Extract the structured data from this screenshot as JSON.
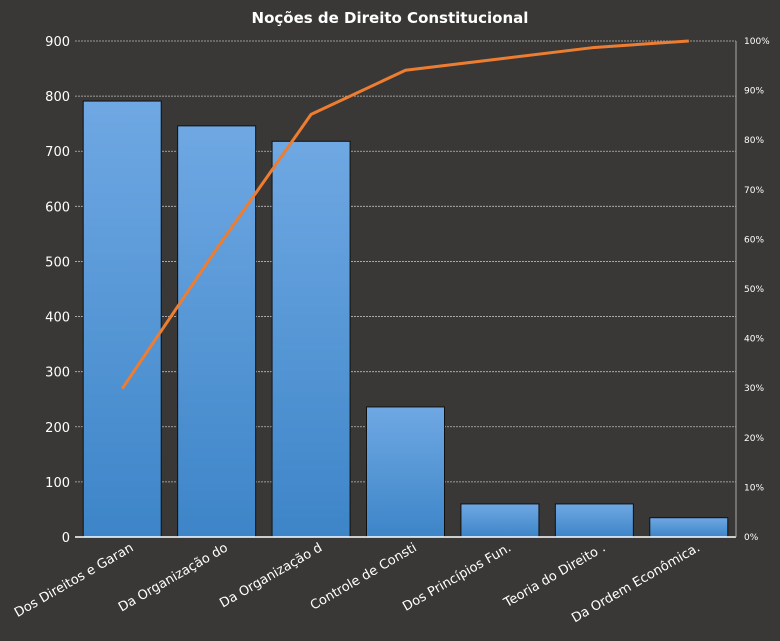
{
  "chart_data": {
    "type": "bar",
    "title": "Noções de Direito  Constitucional",
    "categories": [
      "Dos Direitos e Garan",
      "Da Organização do",
      "Da Organização d",
      "Controle de Consti",
      "Dos Princípios Fun.",
      "Teoria do Direito  .",
      "Da Ordem Econômica."
    ],
    "series": [
      {
        "type": "bar",
        "axis": "left",
        "values": [
          791,
          746,
          718,
          236,
          60,
          60,
          35
        ],
        "color": "#4f93d8"
      },
      {
        "type": "line",
        "axis": "right",
        "values": [
          29.9,
          58.1,
          85.2,
          94.1,
          96.4,
          98.7,
          100
        ],
        "color": "#ed7d31"
      }
    ],
    "ylim": [
      0,
      900
    ],
    "yticks": [
      "0",
      "100",
      "200",
      "300",
      "400",
      "500",
      "600",
      "700",
      "800",
      "900"
    ],
    "y2lim": [
      0,
      100
    ],
    "y2ticks": [
      "0%",
      "10%",
      "20%",
      "30%",
      "40%",
      "50%",
      "60%",
      "70%",
      "80%",
      "90%",
      "100%"
    ],
    "grid": true,
    "legend": "none"
  }
}
